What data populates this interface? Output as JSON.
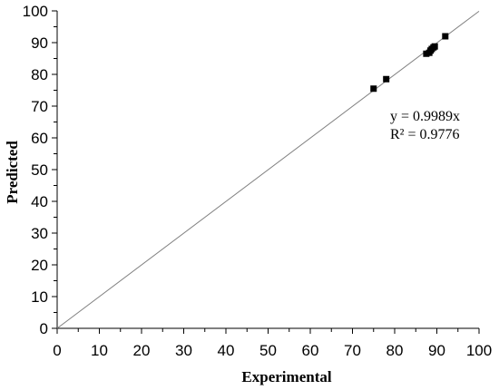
{
  "chart_data": {
    "type": "scatter",
    "xlabel": "Experimental",
    "ylabel": "Predicted",
    "xlim": [
      0,
      100
    ],
    "ylim": [
      0,
      100
    ],
    "x_ticks": [
      "0",
      "10",
      "20",
      "30",
      "40",
      "50",
      "60",
      "70",
      "80",
      "90",
      "100"
    ],
    "y_ticks": [
      "0",
      "10",
      "20",
      "30",
      "40",
      "50",
      "60",
      "70",
      "80",
      "90",
      "100"
    ],
    "grid": false,
    "points": [
      {
        "x": 75.0,
        "y": 75.5
      },
      {
        "x": 78.0,
        "y": 78.5
      },
      {
        "x": 87.5,
        "y": 86.5
      },
      {
        "x": 88.2,
        "y": 86.8
      },
      {
        "x": 88.5,
        "y": 87.5
      },
      {
        "x": 88.8,
        "y": 88.0
      },
      {
        "x": 89.2,
        "y": 88.5
      },
      {
        "x": 89.5,
        "y": 88.8
      },
      {
        "x": 92.0,
        "y": 92.0
      }
    ],
    "trendline": {
      "slope": 0.9989,
      "intercept": 0,
      "x_range": [
        0,
        100
      ]
    },
    "annotations": [
      "y = 0.9989x",
      "R² = 0.9776"
    ],
    "marker_color": "#000000",
    "line_color": "#808080"
  }
}
